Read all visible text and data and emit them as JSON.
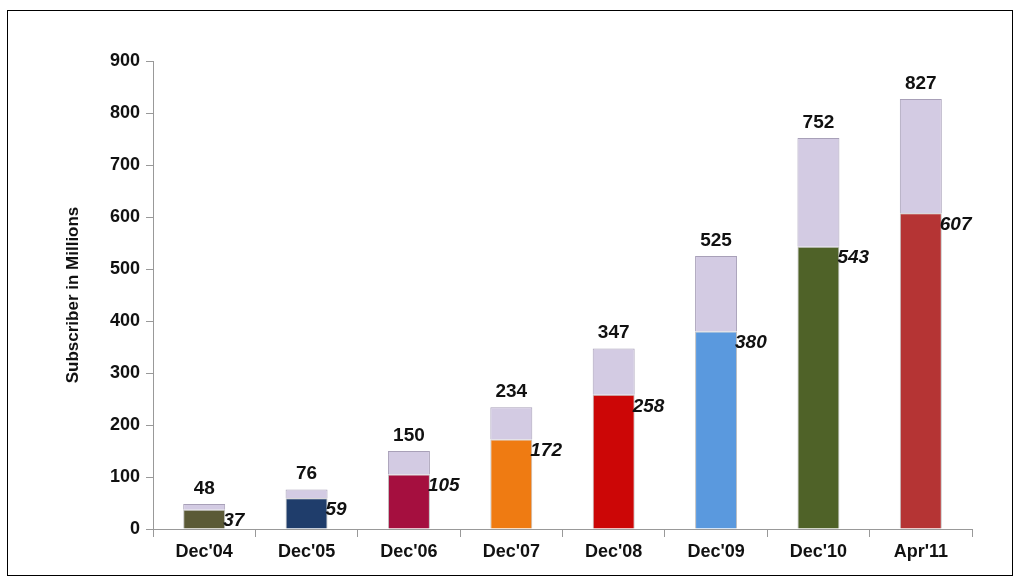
{
  "chart_data": {
    "type": "bar",
    "ylabel": "Subscriber in Millions",
    "categories": [
      "Dec'04",
      "Dec'05",
      "Dec'06",
      "Dec'07",
      "Dec'08",
      "Dec'09",
      "Dec'10",
      "Apr'11"
    ],
    "stacked": true,
    "series": [
      {
        "colors": [
          "#5b5a36",
          "#1f3d6b",
          "#a50f3f",
          "#ef7b12",
          "#cc0606",
          "#5a99de",
          "#4f6228",
          "#b53434"
        ],
        "values": [
          37,
          59,
          105,
          172,
          258,
          380,
          543,
          607
        ],
        "value_labels": [
          "37",
          "59",
          "105",
          "172",
          "258",
          "380",
          "543",
          "607"
        ]
      },
      {
        "color": "#d3cbe3",
        "values": [
          11,
          17,
          45,
          62,
          89,
          145,
          209,
          220
        ]
      }
    ],
    "totals": [
      "48",
      "76",
      "150",
      "234",
      "347",
      "525",
      "752",
      "827"
    ],
    "ylim": [
      0,
      900
    ],
    "yticks": [
      0,
      100,
      200,
      300,
      400,
      500,
      600,
      700,
      800,
      900
    ],
    "grid": false,
    "legend": false
  }
}
